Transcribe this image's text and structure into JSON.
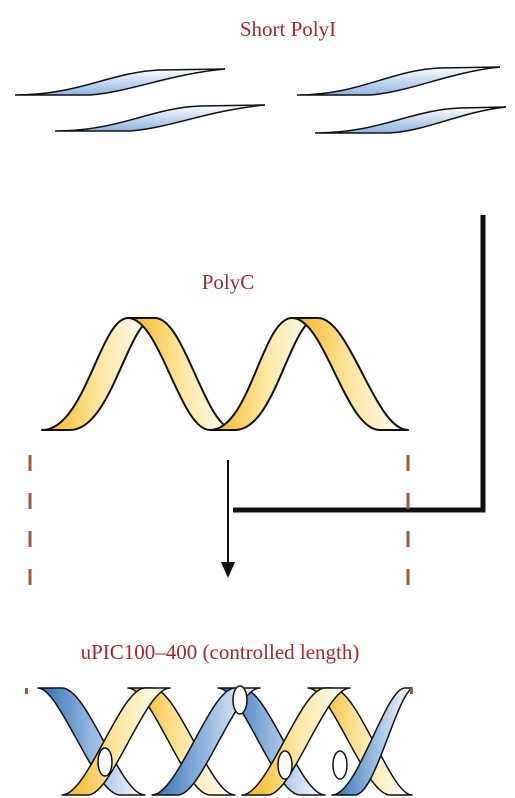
{
  "labels": {
    "short_polyi": "Short PolyI",
    "polyc": "PolyC",
    "upic": "uPIC100–400 (controlled length)"
  }
}
